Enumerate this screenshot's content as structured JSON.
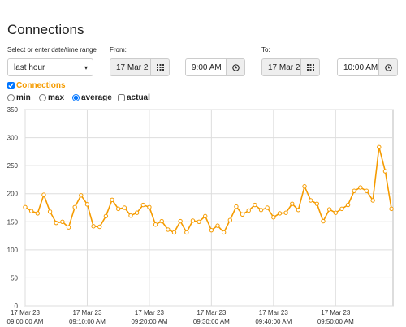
{
  "header": {
    "title": "Connections"
  },
  "form": {
    "range_label": "Select or enter date/time range",
    "range_value": "last hour",
    "from_label": "From:",
    "from_date": "17 Mar 2",
    "from_time": "9:00 AM",
    "to_label": "To:",
    "to_date": "17 Mar 2",
    "to_time": "10:00 AM",
    "options": [
      "min",
      "max",
      "average",
      "actual"
    ]
  },
  "chart_data": {
    "type": "line",
    "x": [
      0,
      1,
      2,
      3,
      4,
      5,
      6,
      7,
      8,
      9,
      10,
      11,
      12,
      13,
      14,
      15,
      16,
      17,
      18,
      19,
      20,
      21,
      22,
      23,
      24,
      25,
      26,
      27,
      28,
      29,
      30,
      31,
      32,
      33,
      34,
      35,
      36,
      37,
      38,
      39,
      40,
      41,
      42,
      43,
      44,
      45,
      46,
      47,
      48,
      49,
      50,
      51,
      52,
      53,
      54,
      55,
      56,
      57,
      58,
      59
    ],
    "series": [
      {
        "name": "Connections",
        "color": "#f59b00",
        "values": [
          176,
          169,
          165,
          198,
          168,
          148,
          150,
          140,
          176,
          197,
          181,
          142,
          141,
          160,
          189,
          173,
          175,
          161,
          166,
          180,
          176,
          145,
          151,
          136,
          131,
          151,
          131,
          152,
          150,
          160,
          135,
          143,
          131,
          153,
          177,
          163,
          170,
          180,
          171,
          175,
          158,
          165,
          166,
          182,
          171,
          213,
          188,
          182,
          151,
          172,
          166,
          173,
          180,
          205,
          211,
          205,
          188,
          283,
          240,
          173
        ]
      }
    ],
    "xlim": [
      0,
      59.25
    ],
    "xticks": [
      {
        "value": 0,
        "label": [
          "17 Mar 23",
          "09:00:00 AM"
        ]
      },
      {
        "value": 10,
        "label": [
          "17 Mar 23",
          "09:10:00 AM"
        ]
      },
      {
        "value": 20,
        "label": [
          "17 Mar 23",
          "09:20:00 AM"
        ]
      },
      {
        "value": 30,
        "label": [
          "17 Mar 23",
          "09:30:00 AM"
        ]
      },
      {
        "value": 40,
        "label": [
          "17 Mar 23",
          "09:40:00 AM"
        ]
      },
      {
        "value": 50,
        "label": [
          "17 Mar 23",
          "09:50:00 AM"
        ]
      }
    ],
    "ylim": [
      0,
      350
    ],
    "yticks": [
      0,
      50,
      100,
      150,
      200,
      250,
      300,
      350
    ],
    "grid": true
  }
}
